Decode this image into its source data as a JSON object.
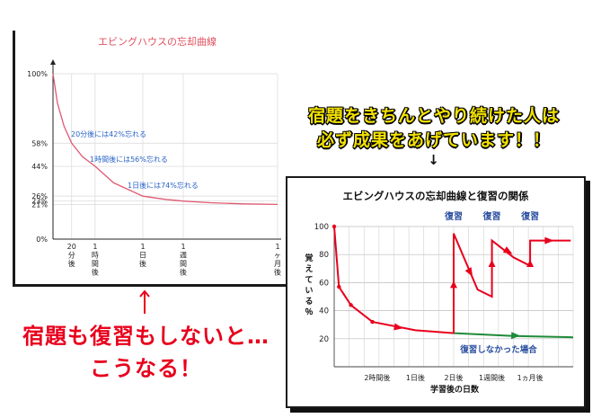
{
  "headline": {
    "line1": "宿題をきちんとやり続けた人は",
    "line2": "必ず成果をあげています！！",
    "arrow": "↓"
  },
  "bottom_note": {
    "line1": "宿題も復習もしないと…",
    "line2": "こうなる！"
  },
  "colors": {
    "curve": "#e05a73",
    "annotation": "#2a64c8",
    "red": "#e8001c",
    "green": "#1f8a3a",
    "headline": "#f2e100",
    "title_left": "#e0505e"
  },
  "chart_data": [
    {
      "type": "line",
      "title": "エビングハウスの忘却曲線",
      "y_ticks": [
        "0%",
        "21%",
        "23%",
        "26%",
        "44%",
        "58%",
        "100%"
      ],
      "y_tick_values": [
        0,
        21,
        23,
        26,
        44,
        58,
        100
      ],
      "x_ticks": [
        {
          "label": "20分後",
          "t": 0.083
        },
        {
          "label": "1時間後",
          "t": 0.1875
        },
        {
          "label": "1日後",
          "t": 0.4
        },
        {
          "label": "1週間後",
          "t": 0.58
        },
        {
          "label": "1ヶ月後",
          "t": 1.0
        }
      ],
      "series": [
        {
          "x": [
            0,
            0.02,
            0.05,
            0.083,
            0.13,
            0.1875,
            0.27,
            0.4,
            0.5,
            0.58,
            0.7,
            0.85,
            1.0
          ],
          "y": [
            100,
            82,
            68,
            58,
            50,
            44,
            34,
            26,
            24,
            23,
            22,
            21.3,
            21
          ]
        }
      ],
      "annotations": [
        "20分後には42%忘れる",
        "1時間後には56%忘れる",
        "1日後には74%忘れる"
      ],
      "ylim": [
        0,
        100
      ],
      "grid": true
    },
    {
      "type": "line",
      "title": "エビングハウスの忘却曲線と復習の関係",
      "xlabel": "学習後の日数",
      "ylabel": "覚えている％",
      "y_ticks": [
        20,
        40,
        60,
        80,
        100
      ],
      "ylim": [
        0,
        100
      ],
      "x_ticks": [
        {
          "label": "2時間後",
          "t": 0.18
        },
        {
          "label": "1日後",
          "t": 0.34
        },
        {
          "label": "2日後",
          "t": 0.5
        },
        {
          "label": "1週間後",
          "t": 0.66
        },
        {
          "label": "1ヵ月後",
          "t": 0.82
        }
      ],
      "series": [
        {
          "name": "forgetting",
          "x": [
            0,
            0.02,
            0.07,
            0.16,
            0.34,
            0.5
          ],
          "y": [
            100,
            57,
            44,
            32,
            26,
            24
          ]
        },
        {
          "name": "review",
          "x": [
            0.5,
            0.5,
            0.6,
            0.66,
            0.66,
            0.75,
            0.82,
            0.82,
            0.99
          ],
          "y": [
            24,
            95,
            55,
            50,
            90,
            78,
            72,
            90,
            90
          ]
        },
        {
          "name": "復習しなかった場合",
          "x": [
            0.5,
            0.75,
            1.0
          ],
          "y": [
            24,
            22,
            21
          ]
        }
      ],
      "review_labels": [
        "復習",
        "復習",
        "復習"
      ],
      "review_x": [
        0.5,
        0.66,
        0.82
      ],
      "no_review_label": "復習しなかった場合",
      "grid": true
    }
  ]
}
